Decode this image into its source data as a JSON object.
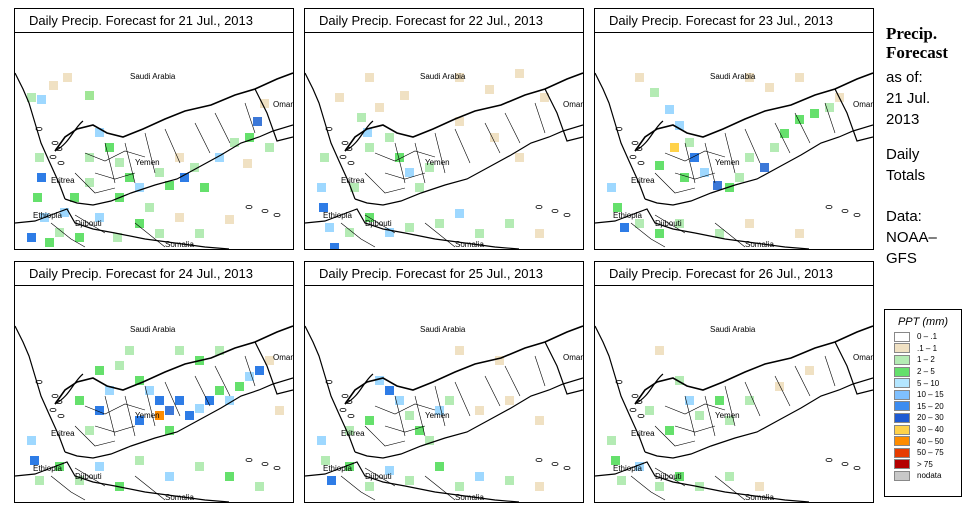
{
  "panels": [
    {
      "title": "Daily Precip. Forecast for  21 Jul., 2013",
      "rain": [
        [
          12,
          60,
          "#b4ebb4"
        ],
        [
          22,
          62,
          "#9ed8ff"
        ],
        [
          34,
          48,
          "#f0e1c3"
        ],
        [
          48,
          40,
          "#f0e1c3"
        ],
        [
          70,
          58,
          "#a0e696"
        ],
        [
          80,
          95,
          "#9ed8ff"
        ],
        [
          90,
          110,
          "#65e06c"
        ],
        [
          100,
          125,
          "#b4ebb4"
        ],
        [
          110,
          140,
          "#65e06c"
        ],
        [
          120,
          150,
          "#9ed8ff"
        ],
        [
          140,
          135,
          "#b4ebb4"
        ],
        [
          150,
          148,
          "#65e06c"
        ],
        [
          165,
          140,
          "#2e7ce6"
        ],
        [
          175,
          130,
          "#b4ebb4"
        ],
        [
          185,
          150,
          "#65e06c"
        ],
        [
          200,
          120,
          "#9ed8ff"
        ],
        [
          215,
          105,
          "#b4ebb4"
        ],
        [
          230,
          100,
          "#65e06c"
        ],
        [
          238,
          84,
          "#3c78d8"
        ],
        [
          245,
          66,
          "#f0e1c3"
        ],
        [
          228,
          126,
          "#f0e1c3"
        ],
        [
          20,
          120,
          "#b4ebb4"
        ],
        [
          22,
          140,
          "#2e7ce6"
        ],
        [
          18,
          160,
          "#65e06c"
        ],
        [
          25,
          180,
          "#9ed8ff"
        ],
        [
          40,
          195,
          "#b4ebb4"
        ],
        [
          60,
          200,
          "#65e06c"
        ],
        [
          80,
          180,
          "#9ed8ff"
        ],
        [
          98,
          200,
          "#b4ebb4"
        ],
        [
          120,
          186,
          "#65e06c"
        ],
        [
          140,
          196,
          "#b4ebb4"
        ],
        [
          160,
          180,
          "#f0e1c3"
        ],
        [
          180,
          196,
          "#b4ebb4"
        ],
        [
          210,
          182,
          "#f0e1c3"
        ],
        [
          55,
          160,
          "#65e06c"
        ],
        [
          70,
          145,
          "#b4ebb4"
        ],
        [
          100,
          160,
          "#65e06c"
        ],
        [
          130,
          170,
          "#b4ebb4"
        ],
        [
          12,
          200,
          "#2e7ce6"
        ],
        [
          30,
          205,
          "#65e06c"
        ],
        [
          45,
          175,
          "#9ed8ff"
        ],
        [
          70,
          120,
          "#b4ebb4"
        ],
        [
          160,
          120,
          "#f0e1c3"
        ],
        [
          250,
          110,
          "#b4ebb4"
        ]
      ]
    },
    {
      "title": "Daily Precip. Forecast for  22 Jul., 2013",
      "rain": [
        [
          60,
          40,
          "#f0e1c3"
        ],
        [
          70,
          70,
          "#f0e1c3"
        ],
        [
          95,
          58,
          "#f0e1c3"
        ],
        [
          150,
          40,
          "#f0e1c3"
        ],
        [
          180,
          52,
          "#f0e1c3"
        ],
        [
          210,
          36,
          "#f0e1c3"
        ],
        [
          235,
          60,
          "#f0e1c3"
        ],
        [
          52,
          80,
          "#b4ebb4"
        ],
        [
          58,
          95,
          "#9ed8ff"
        ],
        [
          60,
          110,
          "#b4ebb4"
        ],
        [
          80,
          100,
          "#b4ebb4"
        ],
        [
          90,
          120,
          "#65e06c"
        ],
        [
          100,
          135,
          "#9ed8ff"
        ],
        [
          110,
          150,
          "#b4ebb4"
        ],
        [
          120,
          130,
          "#b4ebb4"
        ],
        [
          185,
          100,
          "#f0e1c3"
        ],
        [
          210,
          120,
          "#f0e1c3"
        ],
        [
          12,
          150,
          "#9ed8ff"
        ],
        [
          14,
          170,
          "#2e7ce6"
        ],
        [
          20,
          190,
          "#9ed8ff"
        ],
        [
          25,
          210,
          "#2e7ce6"
        ],
        [
          40,
          195,
          "#b4ebb4"
        ],
        [
          60,
          180,
          "#65e06c"
        ],
        [
          80,
          195,
          "#9ed8ff"
        ],
        [
          100,
          190,
          "#b4ebb4"
        ],
        [
          130,
          186,
          "#b4ebb4"
        ],
        [
          150,
          176,
          "#9ed8ff"
        ],
        [
          170,
          196,
          "#b4ebb4"
        ],
        [
          200,
          186,
          "#b4ebb4"
        ],
        [
          230,
          196,
          "#f0e1c3"
        ],
        [
          15,
          120,
          "#b4ebb4"
        ],
        [
          45,
          150,
          "#b4ebb4"
        ],
        [
          150,
          84,
          "#f0e1c3"
        ],
        [
          30,
          60,
          "#f0e1c3"
        ]
      ]
    },
    {
      "title": "Daily Precip. Forecast for  23 Jul., 2013",
      "rain": [
        [
          40,
          40,
          "#f0e1c3"
        ],
        [
          55,
          55,
          "#b4ebb4"
        ],
        [
          70,
          72,
          "#9ed8ff"
        ],
        [
          80,
          88,
          "#9ed8ff"
        ],
        [
          90,
          105,
          "#b4ebb4"
        ],
        [
          95,
          120,
          "#2e7ce6"
        ],
        [
          105,
          135,
          "#9ed8ff"
        ],
        [
          118,
          148,
          "#3c78d8"
        ],
        [
          130,
          150,
          "#65e06c"
        ],
        [
          140,
          140,
          "#b4ebb4"
        ],
        [
          150,
          120,
          "#b4ebb4"
        ],
        [
          165,
          130,
          "#3c78d8"
        ],
        [
          175,
          110,
          "#b4ebb4"
        ],
        [
          185,
          96,
          "#65e06c"
        ],
        [
          200,
          82,
          "#65e06c"
        ],
        [
          215,
          76,
          "#65e06c"
        ],
        [
          230,
          70,
          "#b4ebb4"
        ],
        [
          240,
          60,
          "#f0e1c3"
        ],
        [
          150,
          40,
          "#f0e1c3"
        ],
        [
          170,
          50,
          "#f0e1c3"
        ],
        [
          200,
          40,
          "#f0e1c3"
        ],
        [
          12,
          150,
          "#9ed8ff"
        ],
        [
          18,
          170,
          "#65e06c"
        ],
        [
          25,
          190,
          "#2e7ce6"
        ],
        [
          40,
          186,
          "#b4ebb4"
        ],
        [
          60,
          196,
          "#65e06c"
        ],
        [
          80,
          186,
          "#b4ebb4"
        ],
        [
          120,
          196,
          "#b4ebb4"
        ],
        [
          150,
          186,
          "#f0e1c3"
        ],
        [
          200,
          196,
          "#f0e1c3"
        ],
        [
          75,
          110,
          "#ffd24a"
        ],
        [
          60,
          128,
          "#65e06c"
        ],
        [
          85,
          140,
          "#65e06c"
        ]
      ]
    },
    {
      "title": "Daily Precip. Forecast for  24 Jul., 2013",
      "rain": [
        [
          100,
          75,
          "#b4ebb4"
        ],
        [
          120,
          90,
          "#65e06c"
        ],
        [
          130,
          100,
          "#9ed8ff"
        ],
        [
          140,
          110,
          "#2e7ce6"
        ],
        [
          150,
          120,
          "#3c78d8"
        ],
        [
          160,
          110,
          "#2e7ce6"
        ],
        [
          170,
          125,
          "#2e7ce6"
        ],
        [
          180,
          118,
          "#9ed8ff"
        ],
        [
          190,
          110,
          "#2e7ce6"
        ],
        [
          200,
          100,
          "#65e06c"
        ],
        [
          210,
          110,
          "#9ed8ff"
        ],
        [
          220,
          96,
          "#65e06c"
        ],
        [
          230,
          86,
          "#9ed8ff"
        ],
        [
          240,
          80,
          "#2e7ce6"
        ],
        [
          250,
          70,
          "#f0e1c3"
        ],
        [
          160,
          60,
          "#b4ebb4"
        ],
        [
          180,
          70,
          "#65e06c"
        ],
        [
          200,
          60,
          "#b4ebb4"
        ],
        [
          150,
          140,
          "#65e06c"
        ],
        [
          140,
          125,
          "#ff8c00"
        ],
        [
          90,
          100,
          "#9ed8ff"
        ],
        [
          80,
          120,
          "#2e7ce6"
        ],
        [
          70,
          140,
          "#b4ebb4"
        ],
        [
          60,
          110,
          "#65e06c"
        ],
        [
          12,
          150,
          "#9ed8ff"
        ],
        [
          15,
          170,
          "#2e7ce6"
        ],
        [
          20,
          190,
          "#b4ebb4"
        ],
        [
          40,
          176,
          "#65e06c"
        ],
        [
          60,
          190,
          "#b4ebb4"
        ],
        [
          80,
          176,
          "#9ed8ff"
        ],
        [
          100,
          196,
          "#65e06c"
        ],
        [
          120,
          170,
          "#b4ebb4"
        ],
        [
          150,
          186,
          "#9ed8ff"
        ],
        [
          180,
          176,
          "#b4ebb4"
        ],
        [
          210,
          186,
          "#65e06c"
        ],
        [
          240,
          196,
          "#b4ebb4"
        ],
        [
          260,
          120,
          "#f0e1c3"
        ],
        [
          110,
          60,
          "#b4ebb4"
        ],
        [
          80,
          80,
          "#65e06c"
        ],
        [
          120,
          130,
          "#2e7ce6"
        ]
      ]
    },
    {
      "title": "Daily Precip. Forecast for  25 Jul., 2013",
      "rain": [
        [
          70,
          90,
          "#9ed8ff"
        ],
        [
          80,
          100,
          "#2e7ce6"
        ],
        [
          90,
          110,
          "#9ed8ff"
        ],
        [
          100,
          125,
          "#b4ebb4"
        ],
        [
          110,
          140,
          "#65e06c"
        ],
        [
          120,
          150,
          "#b4ebb4"
        ],
        [
          130,
          120,
          "#9ed8ff"
        ],
        [
          140,
          110,
          "#b4ebb4"
        ],
        [
          170,
          120,
          "#f0e1c3"
        ],
        [
          200,
          110,
          "#f0e1c3"
        ],
        [
          230,
          130,
          "#f0e1c3"
        ],
        [
          12,
          150,
          "#9ed8ff"
        ],
        [
          16,
          170,
          "#b4ebb4"
        ],
        [
          22,
          190,
          "#2e7ce6"
        ],
        [
          40,
          176,
          "#65e06c"
        ],
        [
          60,
          196,
          "#b4ebb4"
        ],
        [
          80,
          180,
          "#9ed8ff"
        ],
        [
          100,
          190,
          "#b4ebb4"
        ],
        [
          130,
          176,
          "#65e06c"
        ],
        [
          150,
          196,
          "#b4ebb4"
        ],
        [
          170,
          186,
          "#9ed8ff"
        ],
        [
          200,
          190,
          "#b4ebb4"
        ],
        [
          230,
          196,
          "#f0e1c3"
        ],
        [
          150,
          60,
          "#f0e1c3"
        ],
        [
          190,
          70,
          "#f0e1c3"
        ],
        [
          60,
          130,
          "#65e06c"
        ],
        [
          40,
          140,
          "#b4ebb4"
        ]
      ]
    },
    {
      "title": "Daily Precip. Forecast for  26 Jul., 2013",
      "rain": [
        [
          60,
          60,
          "#f0e1c3"
        ],
        [
          80,
          90,
          "#b4ebb4"
        ],
        [
          90,
          110,
          "#9ed8ff"
        ],
        [
          100,
          125,
          "#b4ebb4"
        ],
        [
          120,
          110,
          "#65e06c"
        ],
        [
          130,
          130,
          "#b4ebb4"
        ],
        [
          150,
          110,
          "#b4ebb4"
        ],
        [
          180,
          96,
          "#f0e1c3"
        ],
        [
          210,
          80,
          "#f0e1c3"
        ],
        [
          12,
          150,
          "#b4ebb4"
        ],
        [
          16,
          170,
          "#65e06c"
        ],
        [
          22,
          190,
          "#b4ebb4"
        ],
        [
          40,
          176,
          "#9ed8ff"
        ],
        [
          60,
          196,
          "#b4ebb4"
        ],
        [
          80,
          186,
          "#65e06c"
        ],
        [
          100,
          196,
          "#b4ebb4"
        ],
        [
          130,
          186,
          "#b4ebb4"
        ],
        [
          160,
          196,
          "#f0e1c3"
        ],
        [
          50,
          120,
          "#b4ebb4"
        ],
        [
          70,
          140,
          "#65e06c"
        ]
      ]
    }
  ],
  "map_labels": {
    "saudi": "Saudi Arabia",
    "oman": "Oman",
    "yemen": "Yemen",
    "eritrea": "Eritrea",
    "ethiopia": "Ethiopia",
    "djibouti": "Djibouti",
    "somalia": "Somalia"
  },
  "side": {
    "title_line1": "Precip.",
    "title_line2": "Forecast",
    "asof": "as of:",
    "date_line1": "21 Jul.",
    "date_line2": "2013",
    "totals_line1": "Daily",
    "totals_line2": "Totals",
    "data_line1": "Data:",
    "data_line2": "NOAA–",
    "data_line3": "GFS"
  },
  "legend": {
    "title": "PPT (mm)",
    "items": [
      {
        "label": "0 – .1",
        "color": "#ffffff"
      },
      {
        "label": ".1 – 1",
        "color": "#f0e1c3"
      },
      {
        "label": "1 – 2",
        "color": "#b4ebb4"
      },
      {
        "label": "2 – 5",
        "color": "#65e06c"
      },
      {
        "label": "5 – 10",
        "color": "#b4e6ff"
      },
      {
        "label": "10 – 15",
        "color": "#7fc0ff"
      },
      {
        "label": "15 – 20",
        "color": "#3c8cf0"
      },
      {
        "label": "20 – 30",
        "color": "#1e5ad2"
      },
      {
        "label": "30 – 40",
        "color": "#ffd24a"
      },
      {
        "label": "40 – 50",
        "color": "#ff8c00"
      },
      {
        "label": "50 – 75",
        "color": "#e63c00"
      },
      {
        "label": "> 75",
        "color": "#b40000"
      },
      {
        "label": "nodata",
        "color": "#c8c8c8"
      }
    ]
  }
}
